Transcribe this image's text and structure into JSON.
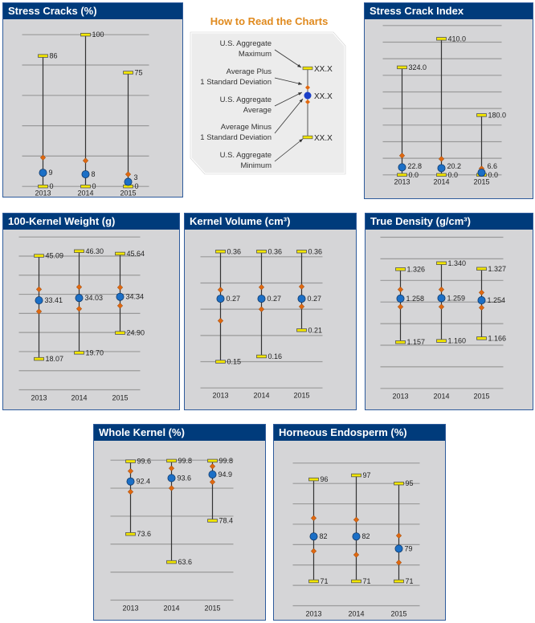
{
  "colors": {
    "header": "#003b7b",
    "panel_bg": "#d5d5d7",
    "cap": "#f2e600",
    "mean": "#1b6fc6",
    "sd": "#e0680f",
    "grid": "#9a9a9a"
  },
  "legend": {
    "title": "How to Read the Charts",
    "items": [
      {
        "line1": "U.S. Aggregate",
        "line2": "Maximum"
      },
      {
        "line1": "Average Plus",
        "line2": "1 Standard Deviation"
      },
      {
        "line1": "U.S. Aggregate",
        "line2": "Average"
      },
      {
        "line1": "Average Minus",
        "line2": "1 Standard Deviation"
      },
      {
        "line1": "U.S. Aggregate",
        "line2": "Minimum"
      }
    ],
    "placeholder": "XX.X"
  },
  "chart_data": [
    {
      "id": "stress-cracks",
      "type": "range",
      "title": "Stress Cracks (%)",
      "ylim": [
        0,
        100
      ],
      "grid_step": 20,
      "decimals": 0,
      "categories": [
        "2013",
        "2014",
        "2015"
      ],
      "max": [
        86,
        100,
        75
      ],
      "plus_sd": [
        19,
        17,
        8
      ],
      "mean": [
        9,
        8,
        3
      ],
      "minus_sd": [
        null,
        null,
        null
      ],
      "min": [
        0,
        0,
        0
      ]
    },
    {
      "id": "stress-crack-index",
      "type": "range",
      "title": "Stress Crack Index",
      "ylim": [
        0,
        450
      ],
      "grid_step": 50,
      "decimals": 1,
      "categories": [
        "2013",
        "2014",
        "2015"
      ],
      "max": [
        324.0,
        410.0,
        180.0
      ],
      "plus_sd": [
        58,
        48,
        19
      ],
      "mean": [
        22.8,
        20.2,
        6.6
      ],
      "minus_sd": [
        null,
        null,
        null
      ],
      "min": [
        0.0,
        0.0,
        0.0
      ]
    },
    {
      "id": "kernel-weight",
      "type": "range",
      "title": "100-Kernel Weight (g)",
      "ylim": [
        10,
        50
      ],
      "grid_step": 5,
      "decimals": 2,
      "categories": [
        "2013",
        "2014",
        "2015"
      ],
      "max": [
        45.09,
        46.3,
        45.64
      ],
      "plus_sd": [
        36.3,
        36.9,
        36.8
      ],
      "mean": [
        33.41,
        34.03,
        34.34
      ],
      "minus_sd": [
        30.5,
        31.2,
        32.0
      ],
      "min": [
        18.07,
        19.7,
        24.9
      ]
    },
    {
      "id": "kernel-volume",
      "type": "range",
      "title": "Kernel Volume (cm³)",
      "ylim": [
        0.1,
        0.35
      ],
      "grid_step": 0.05,
      "decimals": 2,
      "categories": [
        "2013",
        "2014",
        "2015"
      ],
      "max": [
        0.36,
        0.36,
        0.36
      ],
      "plus_sd": [
        0.287,
        0.292,
        0.293
      ],
      "mean": [
        0.27,
        0.27,
        0.27
      ],
      "minus_sd": [
        0.228,
        0.25,
        0.255
      ],
      "min": [
        0.15,
        0.16,
        0.21
      ]
    },
    {
      "id": "true-density",
      "type": "range",
      "title": "True Density (g/cm³)",
      "ylim": [
        1.05,
        1.4
      ],
      "grid_step": 0.05,
      "decimals": 3,
      "categories": [
        "2013",
        "2014",
        "2015"
      ],
      "max": [
        1.326,
        1.34,
        1.327
      ],
      "plus_sd": [
        1.279,
        1.279,
        1.272
      ],
      "mean": [
        1.258,
        1.259,
        1.254
      ],
      "minus_sd": [
        1.239,
        1.239,
        1.237
      ],
      "min": [
        1.157,
        1.16,
        1.166
      ]
    },
    {
      "id": "whole-kernel",
      "type": "range",
      "title": "Whole Kernel (%)",
      "ylim": [
        50,
        100
      ],
      "grid_step": 10,
      "decimals": 1,
      "categories": [
        "2013",
        "2014",
        "2015"
      ],
      "max": [
        99.6,
        99.8,
        99.8
      ],
      "plus_sd": [
        96.1,
        97.1,
        97.8
      ],
      "mean": [
        92.4,
        93.6,
        94.9
      ],
      "minus_sd": [
        88.7,
        90.0,
        92.2
      ],
      "min": [
        73.6,
        63.6,
        78.4
      ]
    },
    {
      "id": "horneous-endosperm",
      "type": "range",
      "title": "Horneous Endosperm (%)",
      "ylim": [
        65,
        100
      ],
      "grid_step": 5,
      "decimals": 0,
      "categories": [
        "2013",
        "2014",
        "2015"
      ],
      "max": [
        96,
        97,
        95
      ],
      "plus_sd": [
        86.5,
        86.1,
        82.2
      ],
      "mean": [
        82,
        82,
        79
      ],
      "minus_sd": [
        78.4,
        77.5,
        75.6
      ],
      "min": [
        71,
        71,
        71
      ]
    }
  ]
}
